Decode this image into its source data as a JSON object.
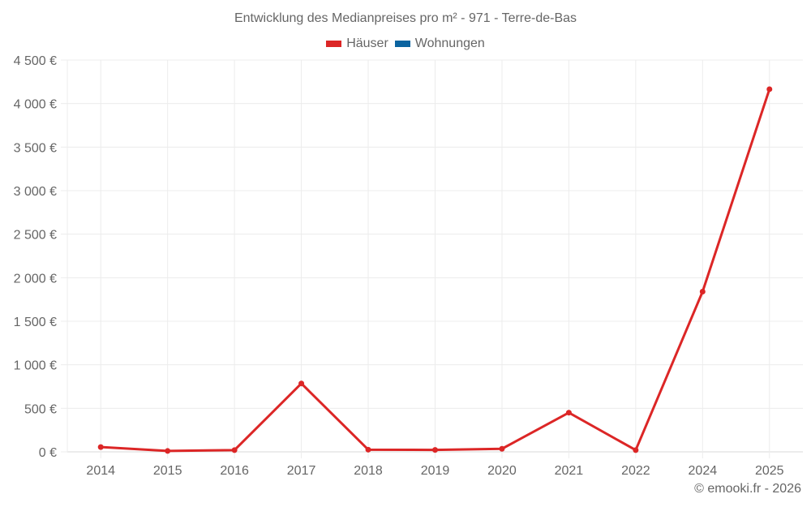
{
  "chart_data": {
    "type": "line",
    "title": "Entwicklung des Medianpreises pro m² - 971 - Terre-de-Bas",
    "xlabel": "",
    "ylabel": "",
    "categories": [
      "2014",
      "2015",
      "2016",
      "2017",
      "2018",
      "2019",
      "2020",
      "2021",
      "2022",
      "2024",
      "2025"
    ],
    "series": [
      {
        "name": "Häuser",
        "color": "#dc2626",
        "values": [
          55,
          10,
          20,
          785,
          25,
          22,
          35,
          450,
          20,
          1840,
          4165
        ]
      },
      {
        "name": "Wohnungen",
        "color": "#0b64a0",
        "values": []
      }
    ],
    "ylim": [
      0,
      4500
    ],
    "yticks": [
      0,
      500,
      1000,
      1500,
      2000,
      2500,
      3000,
      3500,
      4000,
      4500
    ],
    "ytick_labels": [
      "0 €",
      "500 €",
      "1 000 €",
      "1 500 €",
      "2 000 €",
      "2 500 €",
      "3 000 €",
      "3 500 €",
      "4 000 €",
      "4 500 €"
    ],
    "grid": true,
    "legend_position": "top"
  },
  "title": "Entwicklung des Medianpreises pro m² - 971 - Terre-de-Bas",
  "legend": [
    {
      "label": "Häuser",
      "color": "#dc2626"
    },
    {
      "label": "Wohnungen",
      "color": "#0b64a0"
    }
  ],
  "credit": "© emooki.fr - 2026"
}
